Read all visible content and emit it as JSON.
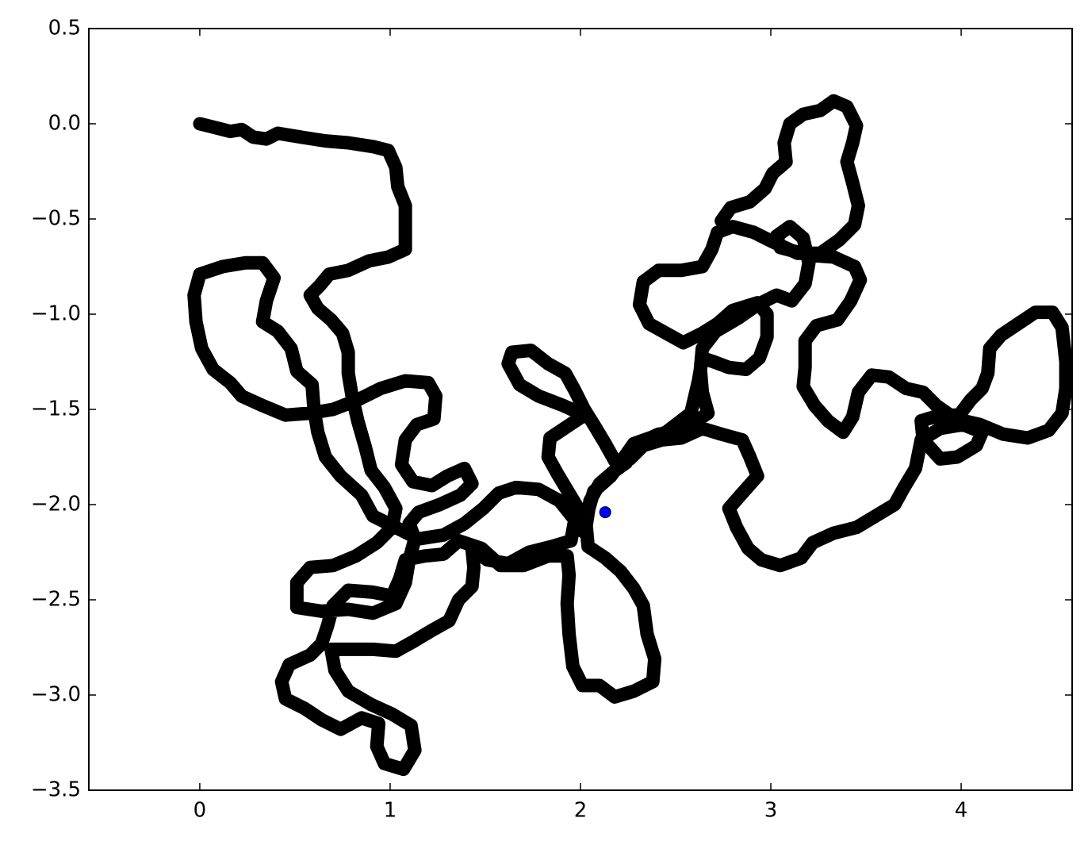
{
  "chart_data": {
    "type": "line",
    "xlim": [
      -0.583,
      4.583
    ],
    "ylim": [
      -3.5,
      0.5
    ],
    "xticks": [
      0,
      1,
      2,
      3,
      4
    ],
    "yticks": [
      {
        "value": -3.5,
        "label": "−3.5"
      },
      {
        "value": -3,
        "label": "−3.0"
      },
      {
        "value": -2.5,
        "label": "−2.5"
      },
      {
        "value": -2,
        "label": "−2.0"
      },
      {
        "value": -1.5,
        "label": "−1.5"
      },
      {
        "value": -1,
        "label": "−1.0"
      },
      {
        "value": -0.5,
        "label": "−0.5"
      },
      {
        "value": 0,
        "label": "0.0"
      },
      0.5
    ],
    "grid": false,
    "series": [
      {
        "color": "#000000",
        "x": [
          0,
          0.08,
          0.16,
          0.22,
          0.28,
          0.35,
          0.41,
          0.53,
          0.66,
          0.78,
          0.91,
          0.99,
          1.03,
          1.04,
          1.08,
          1.08,
          1.08,
          0.99,
          0.89,
          0.78,
          0.68,
          0.63,
          0.58,
          0.62,
          0.69,
          0.75,
          0.78,
          0.78,
          0.8,
          0.83,
          0.87,
          0.9,
          0.97,
          1.03,
          1.01,
          0.93,
          0.82,
          0.7,
          0.58,
          0.51,
          0.51,
          0.64,
          0.78,
          0.91,
          1.03,
          1.08,
          1.1,
          1.13,
          1.1,
          1.15,
          1.26,
          1.37,
          1.43,
          1.39,
          1.3,
          1.22,
          1.12,
          1.06,
          1.08,
          1.14,
          1.23,
          1.24,
          1.2,
          1.08,
          0.95,
          0.83,
          0.7,
          0.58,
          0.45,
          0.33,
          0.22,
          0.16,
          0.07,
          0.01,
          -0.02,
          -0.03,
          0,
          0.12,
          0.24,
          0.33,
          0.39,
          0.35,
          0.33,
          0.41,
          0.48,
          0.51,
          0.59,
          0.6,
          0.62,
          0.66,
          0.74,
          0.85,
          0.91,
          1.03,
          1.15,
          1.28,
          1.39,
          1.49,
          1.57,
          1.66,
          1.78,
          1.89,
          1.97,
          1.95,
          1.85,
          1.73,
          1.62,
          1.51,
          1.43,
          1.44,
          1.43,
          1.36,
          1.31,
          1.22,
          1.12,
          1.03,
          0.91,
          0.78,
          0.69,
          0.71,
          0.78,
          0.9,
          1.01,
          1.11,
          1.13,
          1.07,
          0.97,
          0.93,
          0.94,
          0.85,
          0.74,
          0.64,
          0.55,
          0.45,
          0.43,
          0.47,
          0.58,
          0.64,
          0.67,
          0.7,
          0.78,
          0.91,
          1.01,
          1.05,
          1.08,
          1.18,
          1.28,
          1.36,
          1.48,
          1.58,
          1.7,
          1.83,
          1.93,
          1.94,
          1.93,
          1.94,
          1.96,
          2.01,
          2.1,
          2.18,
          2.28,
          2.38,
          2.39,
          2.35,
          2.33,
          2.28,
          2.21,
          2.13,
          2.04,
          2.03,
          2.05,
          2.1,
          2.17,
          2.24,
          2.3,
          2.41,
          2.51,
          2.58,
          2.67,
          2.64,
          2.63,
          2.64,
          2.71,
          2.83,
          2.93,
          3.03,
          3.11,
          3.18,
          3.2,
          3.17,
          3.1,
          3.03,
          3.05,
          3.2,
          3.33,
          3.44,
          3.47,
          3.42,
          3.35,
          3.24,
          3.18,
          3.18,
          3.17,
          3.23,
          3.3,
          3.38,
          3.43,
          3.46,
          3.53,
          3.62,
          3.71,
          3.8,
          3.87,
          3.97,
          4.1,
          4.22,
          4.35,
          4.46,
          4.53,
          4.55,
          4.55,
          4.53,
          4.48,
          4.39,
          4.3,
          4.21,
          4.15,
          4.14,
          4.11,
          4.05,
          3.99,
          3.89,
          3.79,
          3.8,
          3.89,
          3.98,
          4.08,
          4.11,
          4.01,
          3.89,
          3.79,
          3.76,
          3.7,
          3.65,
          3.55,
          3.45,
          3.33,
          3.22,
          3.16,
          3.05,
          2.95,
          2.88,
          2.82,
          2.78,
          2.85,
          2.93,
          2.89,
          2.85,
          2.74,
          2.64,
          2.53,
          2.43,
          2.33,
          2.26,
          2.18,
          2.13,
          2.07,
          2.02,
          1.97,
          1.92,
          1.83,
          1.74,
          1.64,
          1.62,
          1.68,
          1.78,
          1.91,
          2.02,
          1.93,
          1.84,
          1.83,
          1.88,
          1.94,
          2.0,
          2.01,
          2.07,
          2.16,
          2.28,
          2.45,
          2.58,
          2.62,
          2.64,
          2.7,
          2.78,
          2.87,
          2.94,
          2.98,
          2.98,
          2.93,
          2.8,
          2.72,
          2.64,
          2.54,
          2.45,
          2.36,
          2.31,
          2.33,
          2.41,
          2.53,
          2.64,
          2.69,
          2.72,
          2.8,
          2.91,
          3.01,
          3.14,
          3.26,
          3.36,
          3.44,
          3.46,
          3.43,
          3.4,
          3.43,
          3.45,
          3.4,
          3.33,
          3.26,
          3.17,
          3.1,
          3.07,
          3.08,
          3.01,
          2.97,
          2.89,
          2.79,
          2.74
        ],
        "values": [
          0,
          -0.02,
          -0.04,
          -0.03,
          -0.07,
          -0.08,
          -0.05,
          -0.07,
          -0.09,
          -0.1,
          -0.12,
          -0.14,
          -0.23,
          -0.33,
          -0.43,
          -0.56,
          -0.66,
          -0.7,
          -0.72,
          -0.77,
          -0.79,
          -0.85,
          -0.9,
          -0.97,
          -1.03,
          -1.1,
          -1.2,
          -1.31,
          -1.43,
          -1.56,
          -1.7,
          -1.82,
          -1.91,
          -2.02,
          -2.12,
          -2.2,
          -2.27,
          -2.32,
          -2.33,
          -2.41,
          -2.54,
          -2.56,
          -2.55,
          -2.57,
          -2.52,
          -2.41,
          -2.29,
          -2.18,
          -2.1,
          -2.04,
          -2.0,
          -1.95,
          -1.89,
          -1.81,
          -1.85,
          -1.9,
          -1.88,
          -1.79,
          -1.66,
          -1.58,
          -1.55,
          -1.43,
          -1.36,
          -1.35,
          -1.39,
          -1.45,
          -1.5,
          -1.52,
          -1.53,
          -1.48,
          -1.43,
          -1.36,
          -1.29,
          -1.18,
          -1.04,
          -0.9,
          -0.79,
          -0.75,
          -0.73,
          -0.73,
          -0.81,
          -0.93,
          -1.04,
          -1.09,
          -1.18,
          -1.3,
          -1.37,
          -1.5,
          -1.62,
          -1.75,
          -1.85,
          -1.95,
          -2.06,
          -2.12,
          -2.18,
          -2.16,
          -2.1,
          -2.02,
          -1.94,
          -1.91,
          -1.92,
          -1.98,
          -2.08,
          -2.19,
          -2.22,
          -2.25,
          -2.31,
          -2.29,
          -2.23,
          -2.33,
          -2.43,
          -2.5,
          -2.61,
          -2.66,
          -2.72,
          -2.77,
          -2.76,
          -2.76,
          -2.76,
          -2.87,
          -2.98,
          -3.05,
          -3.1,
          -3.16,
          -3.29,
          -3.39,
          -3.36,
          -3.27,
          -3.15,
          -3.12,
          -3.18,
          -3.13,
          -3.07,
          -3.02,
          -2.93,
          -2.84,
          -2.79,
          -2.73,
          -2.64,
          -2.53,
          -2.45,
          -2.46,
          -2.48,
          -2.39,
          -2.29,
          -2.27,
          -2.26,
          -2.19,
          -2.23,
          -2.32,
          -2.32,
          -2.27,
          -2.27,
          -2.37,
          -2.52,
          -2.68,
          -2.85,
          -2.95,
          -2.95,
          -3.01,
          -2.98,
          -2.93,
          -2.81,
          -2.68,
          -2.53,
          -2.44,
          -2.35,
          -2.28,
          -2.22,
          -2.11,
          -1.98,
          -1.89,
          -1.83,
          -1.78,
          -1.68,
          -1.63,
          -1.62,
          -1.58,
          -1.52,
          -1.41,
          -1.29,
          -1.18,
          -1.09,
          -1.02,
          -0.95,
          -0.9,
          -0.93,
          -0.84,
          -0.73,
          -0.6,
          -0.54,
          -0.59,
          -0.65,
          -0.69,
          -0.7,
          -0.75,
          -0.82,
          -0.93,
          -1.03,
          -1.06,
          -1.14,
          -1.28,
          -1.38,
          -1.48,
          -1.56,
          -1.62,
          -1.54,
          -1.41,
          -1.32,
          -1.33,
          -1.39,
          -1.41,
          -1.48,
          -1.55,
          -1.58,
          -1.63,
          -1.65,
          -1.61,
          -1.52,
          -1.39,
          -1.25,
          -1.07,
          -0.99,
          -0.99,
          -1.05,
          -1.11,
          -1.18,
          -1.31,
          -1.39,
          -1.45,
          -1.53,
          -1.53,
          -1.56,
          -1.66,
          -1.76,
          -1.75,
          -1.69,
          -1.62,
          -1.58,
          -1.6,
          -1.66,
          -1.81,
          -1.91,
          -2.0,
          -2.06,
          -2.12,
          -2.15,
          -2.2,
          -2.28,
          -2.32,
          -2.29,
          -2.23,
          -2.12,
          -2.02,
          -1.94,
          -1.85,
          -1.75,
          -1.66,
          -1.63,
          -1.6,
          -1.65,
          -1.66,
          -1.69,
          -1.76,
          -1.77,
          -1.68,
          -1.58,
          -1.5,
          -1.4,
          -1.31,
          -1.26,
          -1.19,
          -1.2,
          -1.26,
          -1.37,
          -1.43,
          -1.48,
          -1.53,
          -1.59,
          -1.65,
          -1.75,
          -1.84,
          -1.94,
          -2.04,
          -2.14,
          -1.93,
          -1.85,
          -1.68,
          -1.62,
          -1.52,
          -1.35,
          -1.23,
          -1.25,
          -1.28,
          -1.29,
          -1.23,
          -1.12,
          -1.0,
          -0.94,
          -0.98,
          -1.05,
          -1.1,
          -1.15,
          -1.1,
          -1.05,
          -0.95,
          -0.83,
          -0.77,
          -0.77,
          -0.75,
          -0.66,
          -0.57,
          -0.54,
          -0.57,
          -0.62,
          -0.68,
          -0.68,
          -0.61,
          -0.53,
          -0.43,
          -0.31,
          -0.2,
          -0.1,
          -0.01,
          0.09,
          0.12,
          0.07,
          0.05,
          0,
          -0.1,
          -0.2,
          -0.26,
          -0.34,
          -0.41,
          -0.44,
          -0.51
        ]
      },
      {
        "type": "scatter",
        "color": "#0000ff",
        "x": [
          2.13
        ],
        "values": [
          -2.04
        ]
      }
    ]
  }
}
